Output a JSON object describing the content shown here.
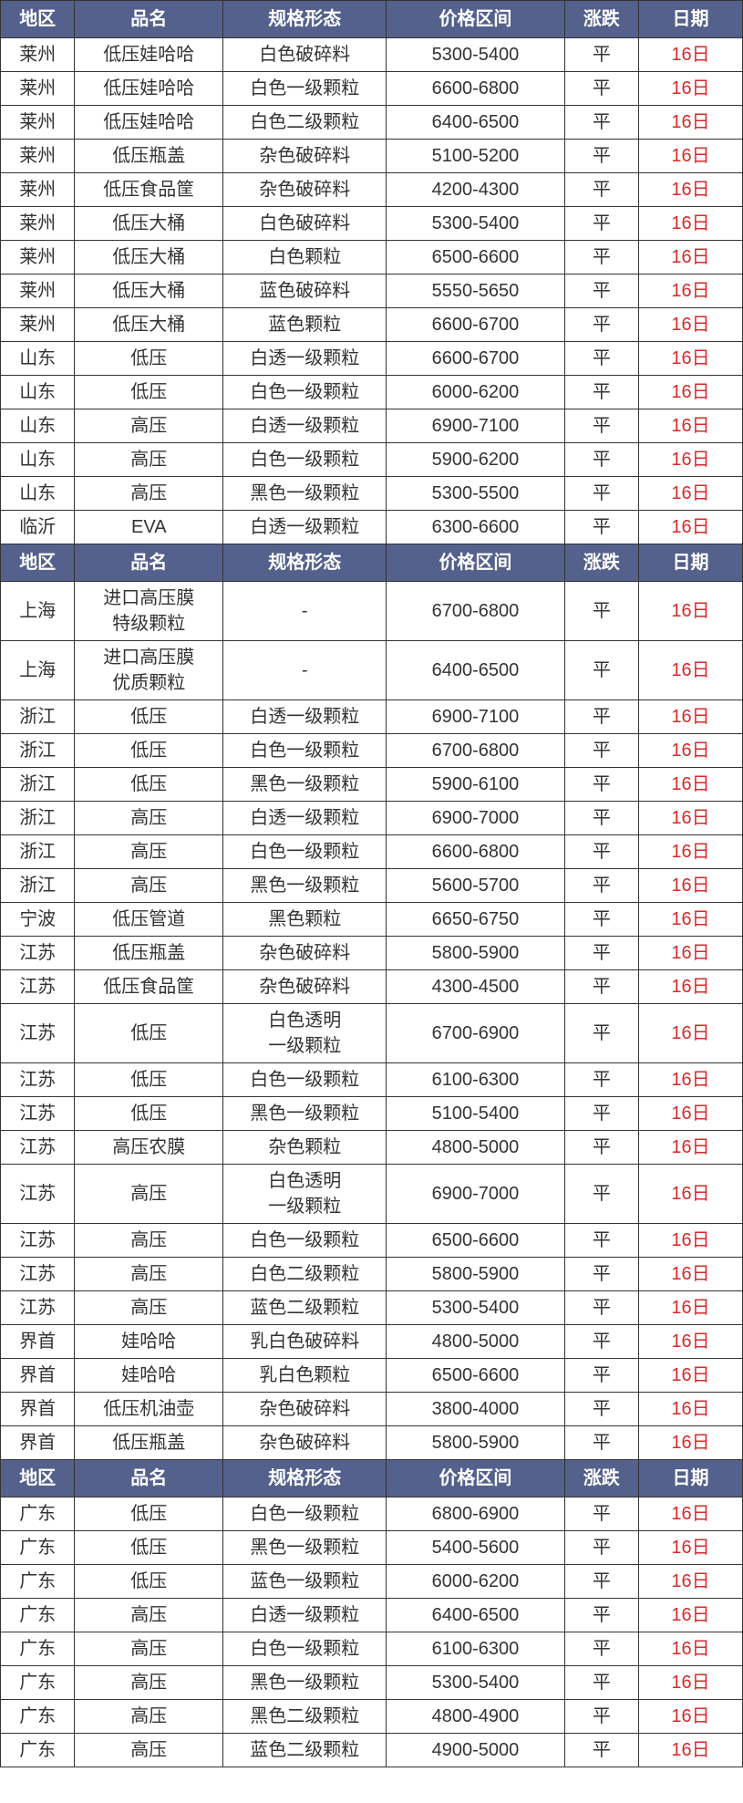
{
  "type": "table",
  "colors": {
    "header_bg": "#54618c",
    "header_text": "#ffffff",
    "cell_text": "#333333",
    "date_text": "#d82a2a",
    "border": "#333333",
    "row_bg": "#ffffff"
  },
  "font_size": 20,
  "columns": [
    "地区",
    "品名",
    "规格形态",
    "价格区间",
    "涨跌",
    "日期"
  ],
  "column_widths": [
    "10%",
    "20%",
    "22%",
    "24%",
    "10%",
    "14%"
  ],
  "sections": [
    {
      "header": [
        "地区",
        "品名",
        "规格形态",
        "价格区间",
        "涨跌",
        "日期"
      ],
      "rows": [
        [
          "莱州",
          "低压娃哈哈",
          "白色破碎料",
          "5300-5400",
          "平",
          "16日"
        ],
        [
          "莱州",
          "低压娃哈哈",
          "白色一级颗粒",
          "6600-6800",
          "平",
          "16日"
        ],
        [
          "莱州",
          "低压娃哈哈",
          "白色二级颗粒",
          "6400-6500",
          "平",
          "16日"
        ],
        [
          "莱州",
          "低压瓶盖",
          "杂色破碎料",
          "5100-5200",
          "平",
          "16日"
        ],
        [
          "莱州",
          "低压食品筐",
          "杂色破碎料",
          "4200-4300",
          "平",
          "16日"
        ],
        [
          "莱州",
          "低压大桶",
          "白色破碎料",
          "5300-5400",
          "平",
          "16日"
        ],
        [
          "莱州",
          "低压大桶",
          "白色颗粒",
          "6500-6600",
          "平",
          "16日"
        ],
        [
          "莱州",
          "低压大桶",
          "蓝色破碎料",
          "5550-5650",
          "平",
          "16日"
        ],
        [
          "莱州",
          "低压大桶",
          "蓝色颗粒",
          "6600-6700",
          "平",
          "16日"
        ],
        [
          "山东",
          "低压",
          "白透一级颗粒",
          "6600-6700",
          "平",
          "16日"
        ],
        [
          "山东",
          "低压",
          "白色一级颗粒",
          "6000-6200",
          "平",
          "16日"
        ],
        [
          "山东",
          "高压",
          "白透一级颗粒",
          "6900-7100",
          "平",
          "16日"
        ],
        [
          "山东",
          "高压",
          "白色一级颗粒",
          "5900-6200",
          "平",
          "16日"
        ],
        [
          "山东",
          "高压",
          "黑色一级颗粒",
          "5300-5500",
          "平",
          "16日"
        ],
        [
          "临沂",
          "EVA",
          "白透一级颗粒",
          "6300-6600",
          "平",
          "16日"
        ]
      ]
    },
    {
      "header": [
        "地区",
        "品名",
        "规格形态",
        "价格区间",
        "涨跌",
        "日期"
      ],
      "rows": [
        [
          "上海",
          "进口高压膜\n特级颗粒",
          "-",
          "6700-6800",
          "平",
          "16日"
        ],
        [
          "上海",
          "进口高压膜\n优质颗粒",
          "-",
          "6400-6500",
          "平",
          "16日"
        ],
        [
          "浙江",
          "低压",
          "白透一级颗粒",
          "6900-7100",
          "平",
          "16日"
        ],
        [
          "浙江",
          "低压",
          "白色一级颗粒",
          "6700-6800",
          "平",
          "16日"
        ],
        [
          "浙江",
          "低压",
          "黑色一级颗粒",
          "5900-6100",
          "平",
          "16日"
        ],
        [
          "浙江",
          "高压",
          "白透一级颗粒",
          "6900-7000",
          "平",
          "16日"
        ],
        [
          "浙江",
          "高压",
          "白色一级颗粒",
          "6600-6800",
          "平",
          "16日"
        ],
        [
          "浙江",
          "高压",
          "黑色一级颗粒",
          "5600-5700",
          "平",
          "16日"
        ],
        [
          "宁波",
          "低压管道",
          "黑色颗粒",
          "6650-6750",
          "平",
          "16日"
        ],
        [
          "江苏",
          "低压瓶盖",
          "杂色破碎料",
          "5800-5900",
          "平",
          "16日"
        ],
        [
          "江苏",
          "低压食品筐",
          "杂色破碎料",
          "4300-4500",
          "平",
          "16日"
        ],
        [
          "江苏",
          "低压",
          "白色透明\n一级颗粒",
          "6700-6900",
          "平",
          "16日"
        ],
        [
          "江苏",
          "低压",
          "白色一级颗粒",
          "6100-6300",
          "平",
          "16日"
        ],
        [
          "江苏",
          "低压",
          "黑色一级颗粒",
          "5100-5400",
          "平",
          "16日"
        ],
        [
          "江苏",
          "高压农膜",
          "杂色颗粒",
          "4800-5000",
          "平",
          "16日"
        ],
        [
          "江苏",
          "高压",
          "白色透明\n一级颗粒",
          "6900-7000",
          "平",
          "16日"
        ],
        [
          "江苏",
          "高压",
          "白色一级颗粒",
          "6500-6600",
          "平",
          "16日"
        ],
        [
          "江苏",
          "高压",
          "白色二级颗粒",
          "5800-5900",
          "平",
          "16日"
        ],
        [
          "江苏",
          "高压",
          "蓝色二级颗粒",
          "5300-5400",
          "平",
          "16日"
        ],
        [
          "界首",
          "娃哈哈",
          "乳白色破碎料",
          "4800-5000",
          "平",
          "16日"
        ],
        [
          "界首",
          "娃哈哈",
          "乳白色颗粒",
          "6500-6600",
          "平",
          "16日"
        ],
        [
          "界首",
          "低压机油壶",
          "杂色破碎料",
          "3800-4000",
          "平",
          "16日"
        ],
        [
          "界首",
          "低压瓶盖",
          "杂色破碎料",
          "5800-5900",
          "平",
          "16日"
        ]
      ]
    },
    {
      "header": [
        "地区",
        "品名",
        "规格形态",
        "价格区间",
        "涨跌",
        "日期"
      ],
      "rows": [
        [
          "广东",
          "低压",
          "白色一级颗粒",
          "6800-6900",
          "平",
          "16日"
        ],
        [
          "广东",
          "低压",
          "黑色一级颗粒",
          "5400-5600",
          "平",
          "16日"
        ],
        [
          "广东",
          "低压",
          "蓝色一级颗粒",
          "6000-6200",
          "平",
          "16日"
        ],
        [
          "广东",
          "高压",
          "白透一级颗粒",
          "6400-6500",
          "平",
          "16日"
        ],
        [
          "广东",
          "高压",
          "白色一级颗粒",
          "6100-6300",
          "平",
          "16日"
        ],
        [
          "广东",
          "高压",
          "黑色一级颗粒",
          "5300-5400",
          "平",
          "16日"
        ],
        [
          "广东",
          "高压",
          "黑色二级颗粒",
          "4800-4900",
          "平",
          "16日"
        ],
        [
          "广东",
          "高压",
          "蓝色二级颗粒",
          "4900-5000",
          "平",
          "16日"
        ]
      ]
    }
  ]
}
